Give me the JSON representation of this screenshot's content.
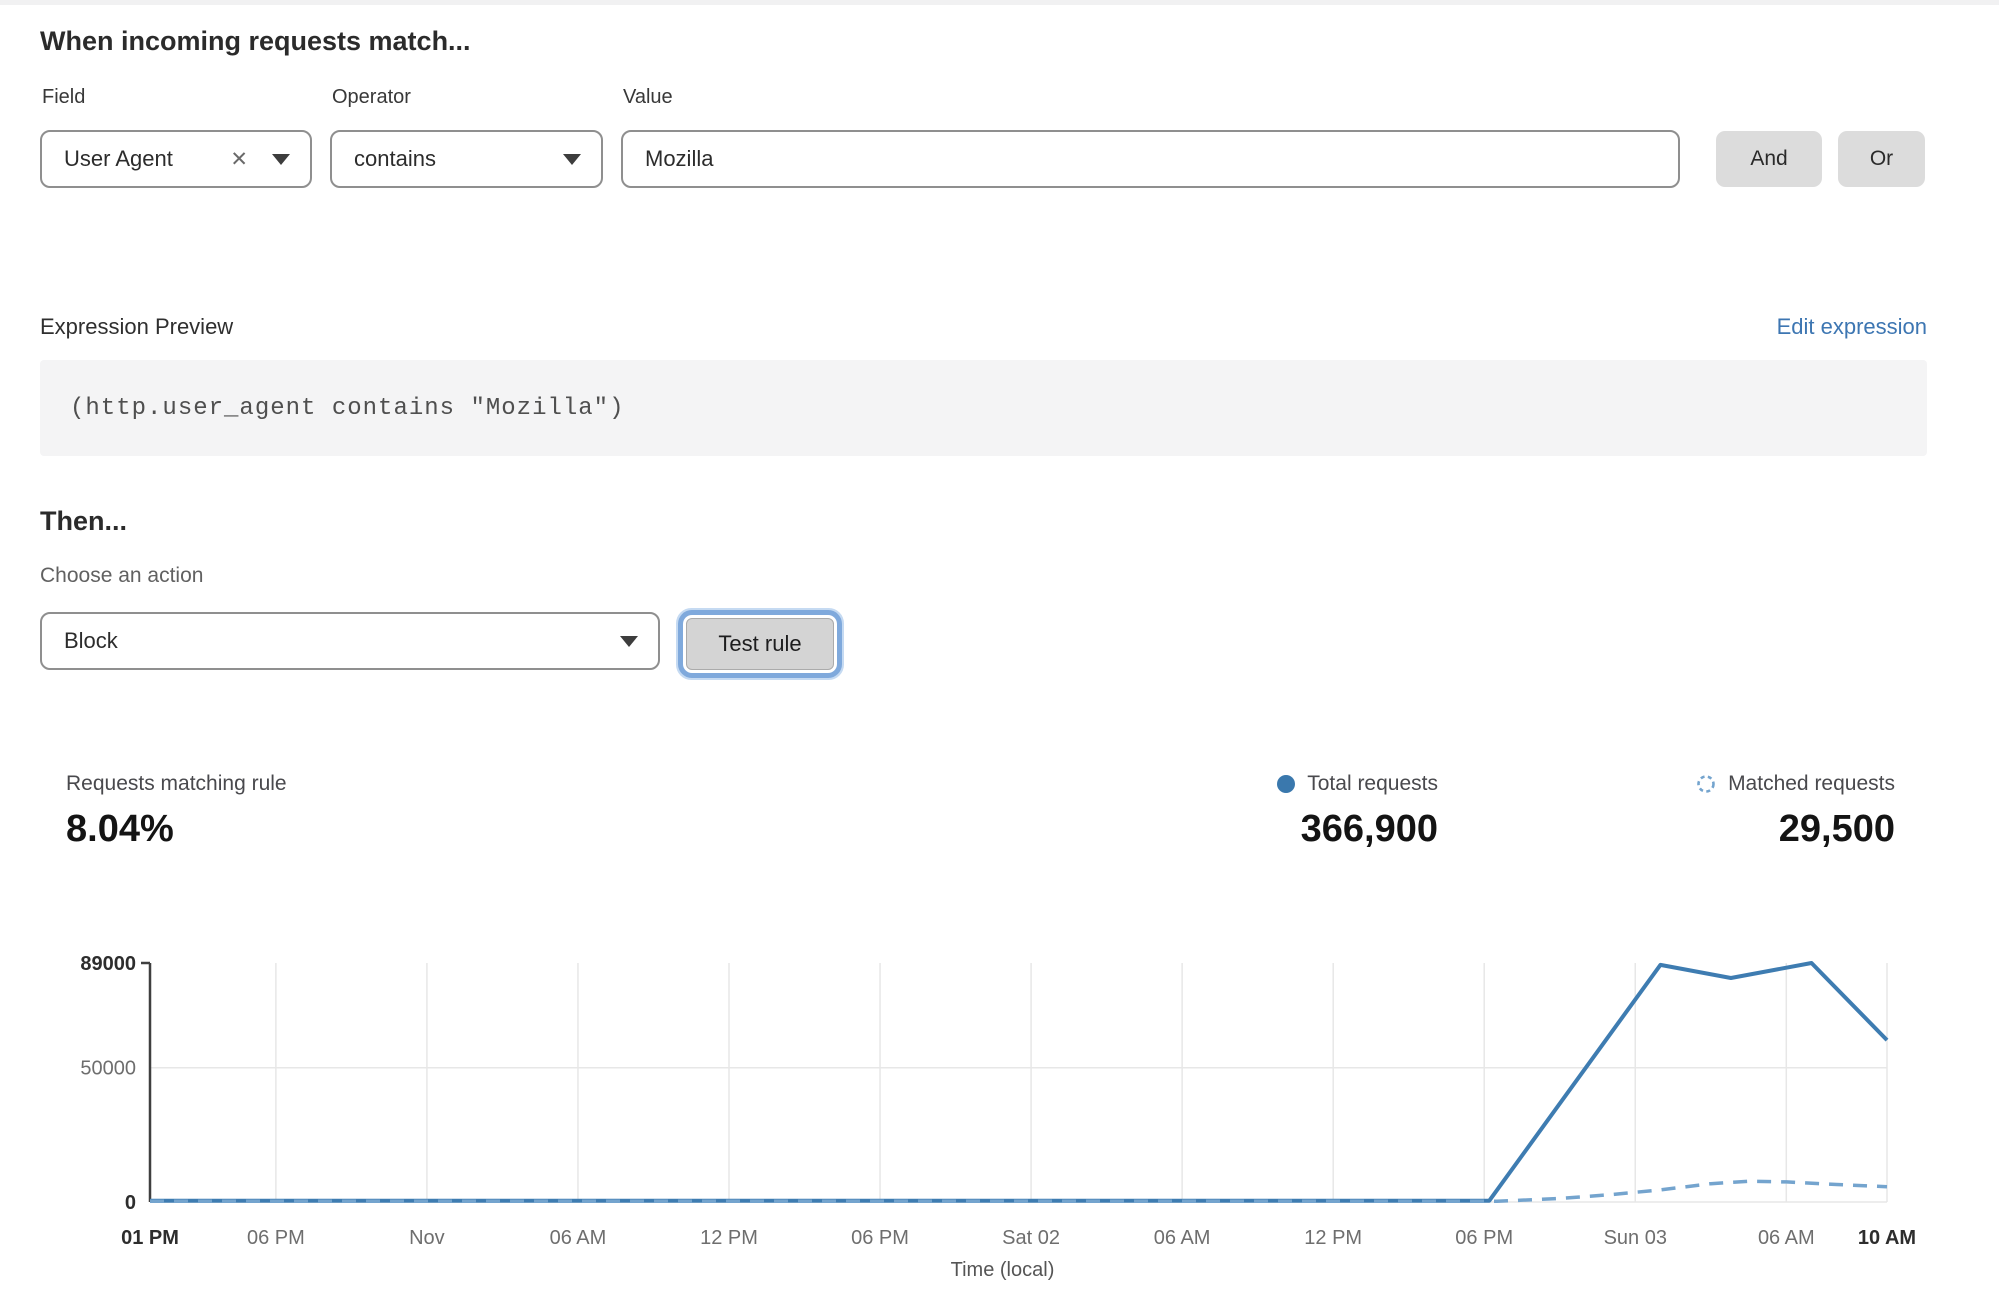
{
  "header": {
    "title": "When incoming requests match..."
  },
  "rule_builder": {
    "field": {
      "label": "Field",
      "value": "User Agent",
      "clear_icon": "✕"
    },
    "operator": {
      "label": "Operator",
      "value": "contains"
    },
    "value": {
      "label": "Value",
      "value": "Mozilla"
    },
    "and_label": "And",
    "or_label": "Or"
  },
  "expression": {
    "preview_label": "Expression Preview",
    "edit_link": "Edit expression",
    "code": "(http.user_agent contains \"Mozilla\")"
  },
  "action": {
    "then_label": "Then...",
    "choose_label": "Choose an action",
    "selected": "Block",
    "test_button": "Test rule"
  },
  "stats": {
    "matching": {
      "label": "Requests matching rule",
      "value": "8.04%"
    },
    "total": {
      "label": "Total requests",
      "value": "366,900"
    },
    "matched": {
      "label": "Matched requests",
      "value": "29,500"
    }
  },
  "colors": {
    "total_line": "#3e7cb1",
    "matched_line": "#74a4ce",
    "legend_dot": "#3a78ad",
    "gridline": "#e7e7e7",
    "axis": "#3f3f3f",
    "tick_normal": "#6e6e6e",
    "tick_bold": "#2d2d2d",
    "link_blue": "#3d76b2"
  },
  "chart_data": {
    "type": "line",
    "xlabel": "Time (local)",
    "x_hours_total": 69,
    "ylim": [
      0,
      89000
    ],
    "grid": true,
    "legend_position": "top-right",
    "x_ticks": [
      {
        "hour": 0,
        "label": "01 PM",
        "bold": true
      },
      {
        "hour": 5,
        "label": "06 PM",
        "bold": false
      },
      {
        "hour": 11,
        "label": "Nov",
        "bold": false
      },
      {
        "hour": 17,
        "label": "06 AM",
        "bold": false
      },
      {
        "hour": 23,
        "label": "12 PM",
        "bold": false
      },
      {
        "hour": 29,
        "label": "06 PM",
        "bold": false
      },
      {
        "hour": 35,
        "label": "Sat 02",
        "bold": false
      },
      {
        "hour": 41,
        "label": "06 AM",
        "bold": false
      },
      {
        "hour": 47,
        "label": "12 PM",
        "bold": false
      },
      {
        "hour": 53,
        "label": "06 PM",
        "bold": false
      },
      {
        "hour": 59,
        "label": "Sun 03",
        "bold": false
      },
      {
        "hour": 65,
        "label": "06 AM",
        "bold": false
      },
      {
        "hour": 69,
        "label": "10 AM",
        "bold": true
      }
    ],
    "y_ticks": [
      {
        "value": 0,
        "label": "0",
        "bold": true
      },
      {
        "value": 50000,
        "label": "50000",
        "bold": false
      },
      {
        "value": 89000,
        "label": "89000",
        "bold": true
      }
    ],
    "series": [
      {
        "name": "Total requests",
        "style": "solid",
        "color": "#3e7cb1",
        "points": [
          [
            0,
            500
          ],
          [
            53.2,
            500
          ],
          [
            60,
            88300
          ],
          [
            62.8,
            83400
          ],
          [
            66,
            89000
          ],
          [
            69,
            60300
          ]
        ]
      },
      {
        "name": "Matched requests",
        "style": "dashed",
        "color": "#74a4ce",
        "points": [
          [
            0,
            250
          ],
          [
            53.5,
            250
          ],
          [
            56,
            1300
          ],
          [
            58,
            2700
          ],
          [
            60,
            4500
          ],
          [
            62,
            6800
          ],
          [
            63.5,
            7700
          ],
          [
            65,
            7500
          ],
          [
            67,
            6500
          ],
          [
            69,
            5700
          ]
        ]
      }
    ]
  }
}
